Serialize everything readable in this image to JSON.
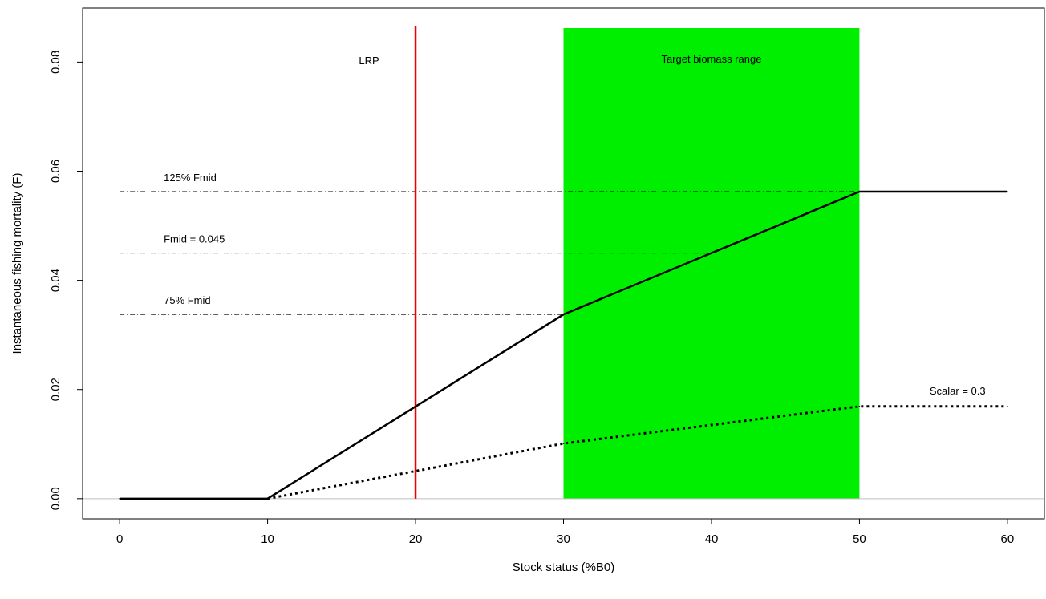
{
  "chart_data": {
    "type": "line",
    "xlabel": "Stock status (%B0)",
    "ylabel": "Instantaneous fishing mortality (F)",
    "xlim": [
      -2.5,
      62.5
    ],
    "ylim": [
      -0.0037,
      0.0899
    ],
    "xticks": [
      0,
      10,
      20,
      30,
      40,
      50,
      60
    ],
    "yticks": [
      0.0,
      0.02,
      0.04,
      0.06,
      0.08
    ],
    "xtick_labels": [
      "0",
      "10",
      "20",
      "30",
      "40",
      "50",
      "60"
    ],
    "ytick_labels": [
      "0.00",
      "0.02",
      "0.04",
      "0.06",
      "0.08"
    ],
    "grid": false,
    "baseline": {
      "y": 0,
      "color": "#bfbfbf"
    },
    "target_range": {
      "x": [
        30,
        50
      ],
      "color": "#00ee00",
      "label": "Target biomass range"
    },
    "lrp": {
      "x": 20,
      "color": "#ee0000",
      "label": "LRP"
    },
    "reference_lines": [
      {
        "label": "125% Fmid",
        "y": 0.05625,
        "x_end": 50
      },
      {
        "label": "Fmid = 0.045",
        "y": 0.045,
        "x_end": 40
      },
      {
        "label": "75% Fmid",
        "y": 0.03375,
        "x_end": 30
      }
    ],
    "series": [
      {
        "style": "solid",
        "x": [
          0,
          10,
          30,
          50,
          60
        ],
        "y": [
          0,
          0,
          0.03375,
          0.05625,
          0.05625
        ]
      },
      {
        "label": "Scalar = 0.3",
        "style": "dotted",
        "x": [
          10,
          30,
          50,
          60
        ],
        "y": [
          0,
          0.0101,
          0.0169,
          0.0169
        ]
      }
    ]
  }
}
